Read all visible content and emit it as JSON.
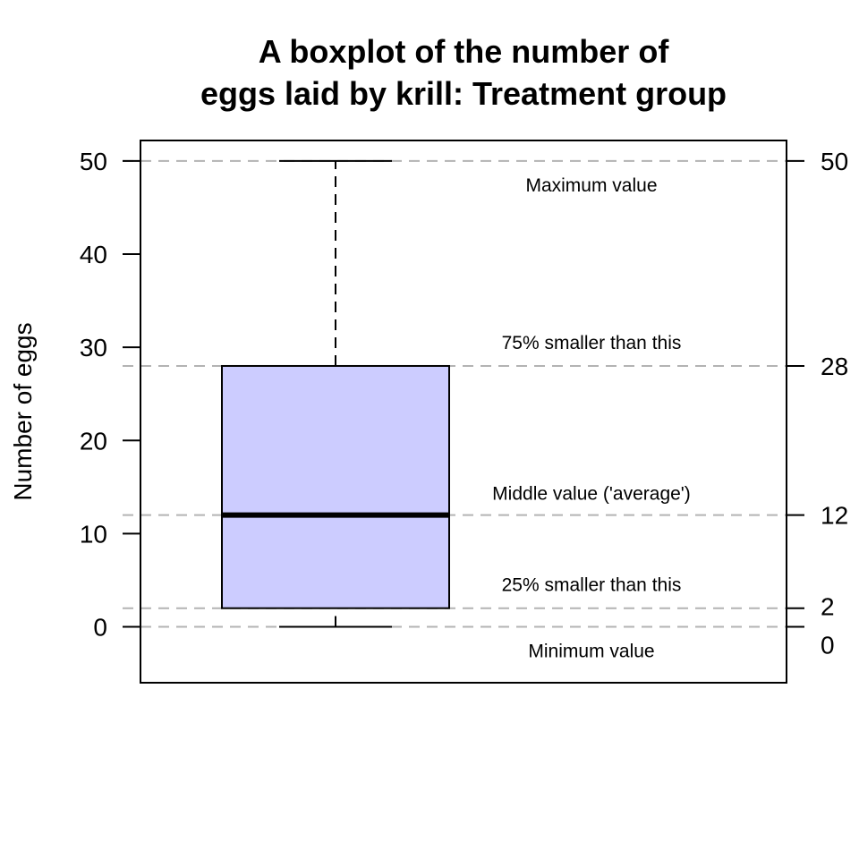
{
  "chart_data": {
    "type": "box",
    "title_lines": [
      "A boxplot of the number of",
      "eggs laid by krill: Treatment group"
    ],
    "ylabel": "Number of eggs",
    "xlabel": "",
    "ylim": [
      -6,
      52.2
    ],
    "y_ticks_left": [
      0,
      10,
      20,
      30,
      40,
      50
    ],
    "y_ticks_right": [
      0,
      2,
      12,
      28,
      50
    ],
    "box": {
      "min": 0,
      "q1": 2,
      "median": 12,
      "q3": 28,
      "max": 50
    },
    "reference_lines": [
      0,
      2,
      12,
      28,
      50
    ],
    "annotations": [
      {
        "text": "Maximum value",
        "value": 50
      },
      {
        "text": "75% smaller than this",
        "value": 28
      },
      {
        "text": "Middle value ('average')",
        "value": 12
      },
      {
        "text": "25% smaller than this",
        "value": 2
      },
      {
        "text": "Minimum value",
        "value": 0
      }
    ],
    "colors": {
      "box_fill": "#ccccff",
      "reference_line": "#b3b3b3",
      "stroke": "#000000"
    }
  }
}
